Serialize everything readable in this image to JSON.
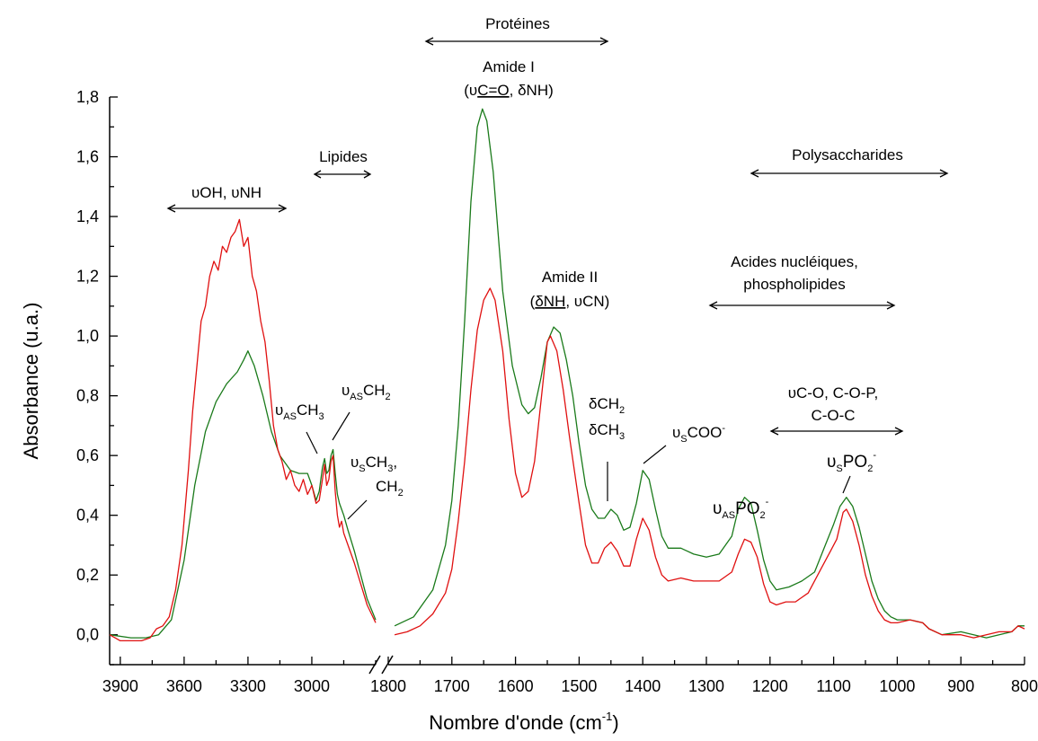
{
  "chart_data": {
    "type": "line",
    "xlabel": "Nombre d'onde (cm",
    "xlabel_sup": "-1",
    "xlabel_close": ")",
    "ylabel": "Absorbance (u.a.)",
    "ylim": [
      -0.1,
      1.8
    ],
    "yticks": [
      "0,0",
      "0,2",
      "0,4",
      "0,6",
      "0,8",
      "1,0",
      "1,2",
      "1,4",
      "1,6",
      "1,8"
    ],
    "x_broken": true,
    "x_segments": [
      {
        "range": [
          3950,
          2700
        ],
        "ticks": [
          "3900",
          "3600",
          "3300",
          "3000"
        ]
      },
      {
        "range": [
          1800,
          800
        ],
        "ticks": [
          "1800",
          "1700",
          "1600",
          "1500",
          "1400",
          "1300",
          "1200",
          "1100",
          "1000",
          "900",
          "800"
        ]
      }
    ],
    "series": [
      {
        "color": "#1a7a1a",
        "segment1": [
          [
            3950,
            0.0
          ],
          [
            3850,
            -0.01
          ],
          [
            3780,
            -0.01
          ],
          [
            3720,
            0.0
          ],
          [
            3660,
            0.05
          ],
          [
            3600,
            0.25
          ],
          [
            3550,
            0.5
          ],
          [
            3500,
            0.68
          ],
          [
            3450,
            0.78
          ],
          [
            3400,
            0.84
          ],
          [
            3350,
            0.88
          ],
          [
            3320,
            0.92
          ],
          [
            3300,
            0.95
          ],
          [
            3270,
            0.9
          ],
          [
            3230,
            0.8
          ],
          [
            3190,
            0.68
          ],
          [
            3150,
            0.6
          ],
          [
            3100,
            0.55
          ],
          [
            3060,
            0.54
          ],
          [
            3020,
            0.54
          ],
          [
            3000,
            0.5
          ],
          [
            2980,
            0.45
          ],
          [
            2965,
            0.48
          ],
          [
            2950,
            0.56
          ],
          [
            2940,
            0.59
          ],
          [
            2930,
            0.54
          ],
          [
            2920,
            0.55
          ],
          [
            2910,
            0.6
          ],
          [
            2900,
            0.62
          ],
          [
            2890,
            0.54
          ],
          [
            2880,
            0.47
          ],
          [
            2870,
            0.44
          ],
          [
            2860,
            0.42
          ],
          [
            2850,
            0.4
          ],
          [
            2830,
            0.35
          ],
          [
            2800,
            0.28
          ],
          [
            2770,
            0.2
          ],
          [
            2740,
            0.12
          ],
          [
            2700,
            0.05
          ]
        ],
        "segment2": [
          [
            1790,
            0.03
          ],
          [
            1760,
            0.06
          ],
          [
            1730,
            0.15
          ],
          [
            1710,
            0.3
          ],
          [
            1700,
            0.45
          ],
          [
            1690,
            0.7
          ],
          [
            1680,
            1.05
          ],
          [
            1670,
            1.45
          ],
          [
            1660,
            1.7
          ],
          [
            1652,
            1.76
          ],
          [
            1645,
            1.72
          ],
          [
            1635,
            1.55
          ],
          [
            1620,
            1.15
          ],
          [
            1605,
            0.9
          ],
          [
            1590,
            0.77
          ],
          [
            1580,
            0.74
          ],
          [
            1570,
            0.76
          ],
          [
            1560,
            0.86
          ],
          [
            1550,
            0.98
          ],
          [
            1540,
            1.03
          ],
          [
            1530,
            1.01
          ],
          [
            1520,
            0.92
          ],
          [
            1510,
            0.8
          ],
          [
            1500,
            0.64
          ],
          [
            1490,
            0.5
          ],
          [
            1480,
            0.42
          ],
          [
            1470,
            0.39
          ],
          [
            1460,
            0.39
          ],
          [
            1450,
            0.42
          ],
          [
            1440,
            0.4
          ],
          [
            1430,
            0.35
          ],
          [
            1420,
            0.36
          ],
          [
            1410,
            0.44
          ],
          [
            1400,
            0.55
          ],
          [
            1390,
            0.52
          ],
          [
            1380,
            0.42
          ],
          [
            1370,
            0.33
          ],
          [
            1360,
            0.29
          ],
          [
            1340,
            0.29
          ],
          [
            1320,
            0.27
          ],
          [
            1300,
            0.26
          ],
          [
            1280,
            0.27
          ],
          [
            1260,
            0.33
          ],
          [
            1250,
            0.42
          ],
          [
            1240,
            0.46
          ],
          [
            1230,
            0.44
          ],
          [
            1220,
            0.35
          ],
          [
            1210,
            0.25
          ],
          [
            1200,
            0.18
          ],
          [
            1190,
            0.15
          ],
          [
            1170,
            0.16
          ],
          [
            1150,
            0.18
          ],
          [
            1130,
            0.21
          ],
          [
            1115,
            0.29
          ],
          [
            1100,
            0.37
          ],
          [
            1090,
            0.43
          ],
          [
            1080,
            0.46
          ],
          [
            1070,
            0.43
          ],
          [
            1060,
            0.36
          ],
          [
            1050,
            0.27
          ],
          [
            1040,
            0.18
          ],
          [
            1030,
            0.12
          ],
          [
            1020,
            0.08
          ],
          [
            1010,
            0.06
          ],
          [
            1000,
            0.05
          ],
          [
            980,
            0.05
          ],
          [
            960,
            0.04
          ],
          [
            950,
            0.02
          ],
          [
            930,
            0.0
          ],
          [
            900,
            0.01
          ],
          [
            880,
            0.0
          ],
          [
            860,
            -0.01
          ],
          [
            840,
            0.0
          ],
          [
            820,
            0.01
          ],
          [
            810,
            0.03
          ],
          [
            800,
            0.03
          ]
        ]
      },
      {
        "color": "#e01010",
        "segment1": [
          [
            3950,
            0.0
          ],
          [
            3900,
            -0.02
          ],
          [
            3850,
            -0.02
          ],
          [
            3800,
            -0.02
          ],
          [
            3760,
            -0.01
          ],
          [
            3730,
            0.02
          ],
          [
            3700,
            0.03
          ],
          [
            3670,
            0.06
          ],
          [
            3640,
            0.15
          ],
          [
            3610,
            0.3
          ],
          [
            3580,
            0.55
          ],
          [
            3560,
            0.75
          ],
          [
            3540,
            0.9
          ],
          [
            3520,
            1.05
          ],
          [
            3500,
            1.1
          ],
          [
            3480,
            1.2
          ],
          [
            3460,
            1.25
          ],
          [
            3440,
            1.22
          ],
          [
            3420,
            1.3
          ],
          [
            3400,
            1.28
          ],
          [
            3380,
            1.33
          ],
          [
            3360,
            1.35
          ],
          [
            3340,
            1.39
          ],
          [
            3320,
            1.3
          ],
          [
            3300,
            1.33
          ],
          [
            3280,
            1.2
          ],
          [
            3260,
            1.15
          ],
          [
            3240,
            1.05
          ],
          [
            3220,
            0.98
          ],
          [
            3200,
            0.85
          ],
          [
            3180,
            0.7
          ],
          [
            3160,
            0.62
          ],
          [
            3140,
            0.58
          ],
          [
            3120,
            0.52
          ],
          [
            3100,
            0.55
          ],
          [
            3080,
            0.5
          ],
          [
            3060,
            0.48
          ],
          [
            3040,
            0.52
          ],
          [
            3020,
            0.47
          ],
          [
            3000,
            0.5
          ],
          [
            2980,
            0.44
          ],
          [
            2965,
            0.45
          ],
          [
            2950,
            0.52
          ],
          [
            2940,
            0.57
          ],
          [
            2930,
            0.5
          ],
          [
            2920,
            0.52
          ],
          [
            2910,
            0.58
          ],
          [
            2900,
            0.6
          ],
          [
            2890,
            0.48
          ],
          [
            2880,
            0.4
          ],
          [
            2870,
            0.36
          ],
          [
            2860,
            0.38
          ],
          [
            2850,
            0.34
          ],
          [
            2830,
            0.3
          ],
          [
            2800,
            0.24
          ],
          [
            2770,
            0.17
          ],
          [
            2740,
            0.1
          ],
          [
            2700,
            0.04
          ]
        ],
        "segment2": [
          [
            1790,
            0.0
          ],
          [
            1770,
            0.01
          ],
          [
            1750,
            0.03
          ],
          [
            1730,
            0.07
          ],
          [
            1710,
            0.14
          ],
          [
            1700,
            0.22
          ],
          [
            1690,
            0.38
          ],
          [
            1680,
            0.58
          ],
          [
            1670,
            0.82
          ],
          [
            1660,
            1.02
          ],
          [
            1650,
            1.12
          ],
          [
            1640,
            1.16
          ],
          [
            1632,
            1.12
          ],
          [
            1620,
            0.95
          ],
          [
            1610,
            0.72
          ],
          [
            1600,
            0.54
          ],
          [
            1590,
            0.46
          ],
          [
            1580,
            0.48
          ],
          [
            1570,
            0.58
          ],
          [
            1560,
            0.78
          ],
          [
            1550,
            0.98
          ],
          [
            1545,
            1.0
          ],
          [
            1535,
            0.95
          ],
          [
            1525,
            0.82
          ],
          [
            1515,
            0.66
          ],
          [
            1500,
            0.44
          ],
          [
            1490,
            0.3
          ],
          [
            1480,
            0.24
          ],
          [
            1470,
            0.24
          ],
          [
            1460,
            0.29
          ],
          [
            1450,
            0.31
          ],
          [
            1440,
            0.28
          ],
          [
            1430,
            0.23
          ],
          [
            1420,
            0.23
          ],
          [
            1410,
            0.32
          ],
          [
            1400,
            0.39
          ],
          [
            1390,
            0.35
          ],
          [
            1380,
            0.26
          ],
          [
            1370,
            0.2
          ],
          [
            1360,
            0.18
          ],
          [
            1340,
            0.19
          ],
          [
            1320,
            0.18
          ],
          [
            1300,
            0.18
          ],
          [
            1280,
            0.18
          ],
          [
            1260,
            0.21
          ],
          [
            1250,
            0.27
          ],
          [
            1240,
            0.32
          ],
          [
            1230,
            0.31
          ],
          [
            1220,
            0.26
          ],
          [
            1210,
            0.17
          ],
          [
            1200,
            0.11
          ],
          [
            1190,
            0.1
          ],
          [
            1175,
            0.11
          ],
          [
            1160,
            0.11
          ],
          [
            1140,
            0.14
          ],
          [
            1120,
            0.22
          ],
          [
            1105,
            0.28
          ],
          [
            1095,
            0.32
          ],
          [
            1085,
            0.41
          ],
          [
            1080,
            0.42
          ],
          [
            1070,
            0.38
          ],
          [
            1060,
            0.3
          ],
          [
            1050,
            0.2
          ],
          [
            1040,
            0.13
          ],
          [
            1030,
            0.08
          ],
          [
            1020,
            0.05
          ],
          [
            1010,
            0.04
          ],
          [
            1000,
            0.04
          ],
          [
            980,
            0.05
          ],
          [
            960,
            0.04
          ],
          [
            950,
            0.02
          ],
          [
            930,
            0.0
          ],
          [
            900,
            0.0
          ],
          [
            880,
            -0.01
          ],
          [
            860,
            0.0
          ],
          [
            840,
            0.01
          ],
          [
            820,
            0.01
          ],
          [
            810,
            0.03
          ],
          [
            800,
            0.02
          ]
        ]
      }
    ]
  },
  "annotations": {
    "proteines": "Protéines",
    "amide1_title": "Amide I",
    "amide1_open": "(υ",
    "amide1_under": "C=O",
    "amide1_rest": ", δNH)",
    "lipides": "Lipides",
    "oh_nh": "υOH, υNH",
    "amide2_title": "Amide II",
    "amide2_open": "(",
    "amide2_under": "δNH",
    "amide2_rest": ", υCN)",
    "polysaccharides": "Polysaccharides",
    "acides_line1": "Acides nucléiques,",
    "acides_line2": "phospholipides",
    "co_line1": "υC-O, C-O-P,",
    "co_line2": "C-O-C",
    "dch2": "δCH",
    "dch3": "δCH",
    "sub2": "2",
    "sub3": "3",
    "upsilon": "υ",
    "sub_as": "AS",
    "sub_s": "S",
    "ch2": "CH",
    "ch3": "CH",
    "ch3_comma": ",",
    "coo": "COO",
    "po2": "PO",
    "minus": "-"
  }
}
